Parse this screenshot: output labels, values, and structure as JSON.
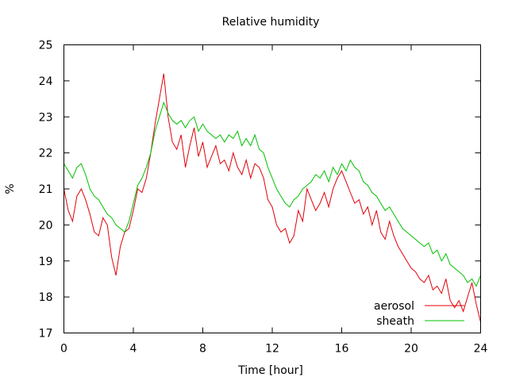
{
  "chart_data": {
    "type": "line",
    "title": "Relative humidity",
    "xlabel": "Time [hour]",
    "ylabel": "%",
    "xlim": [
      0,
      24
    ],
    "ylim": [
      17,
      25
    ],
    "xticks": [
      0,
      4,
      8,
      12,
      16,
      20,
      24
    ],
    "yticks": [
      17,
      18,
      19,
      20,
      21,
      22,
      23,
      24,
      25
    ],
    "grid": false,
    "legend_position": "bottom-right",
    "series": [
      {
        "name": "aerosol",
        "color": "#e0000a",
        "x": [
          0,
          0.25,
          0.5,
          0.75,
          1,
          1.25,
          1.5,
          1.75,
          2,
          2.25,
          2.5,
          2.75,
          3,
          3.25,
          3.5,
          3.75,
          4,
          4.25,
          4.5,
          4.75,
          5,
          5.25,
          5.5,
          5.75,
          6,
          6.25,
          6.5,
          6.75,
          7,
          7.25,
          7.5,
          7.75,
          8,
          8.25,
          8.5,
          8.75,
          9,
          9.25,
          9.5,
          9.75,
          10,
          10.25,
          10.5,
          10.75,
          11,
          11.25,
          11.5,
          11.75,
          12,
          12.25,
          12.5,
          12.75,
          13,
          13.25,
          13.5,
          13.75,
          14,
          14.25,
          14.5,
          14.75,
          15,
          15.25,
          15.5,
          15.75,
          16,
          16.25,
          16.5,
          16.75,
          17,
          17.25,
          17.5,
          17.75,
          18,
          18.25,
          18.5,
          18.75,
          19,
          19.25,
          19.5,
          19.75,
          20,
          20.25,
          20.5,
          20.75,
          21,
          21.25,
          21.5,
          21.75,
          22,
          22.25,
          22.5,
          22.75,
          23,
          23.25,
          23.5,
          23.75,
          24
        ],
        "values": [
          21.0,
          20.4,
          20.1,
          20.8,
          21.0,
          20.7,
          20.3,
          19.8,
          19.7,
          20.2,
          20.0,
          19.1,
          18.6,
          19.4,
          19.8,
          19.9,
          20.4,
          21.0,
          20.9,
          21.3,
          22.0,
          22.8,
          23.5,
          24.2,
          23.0,
          22.3,
          22.1,
          22.5,
          21.6,
          22.2,
          22.7,
          21.9,
          22.3,
          21.6,
          21.9,
          22.2,
          21.7,
          21.8,
          21.5,
          22.0,
          21.6,
          21.4,
          21.8,
          21.3,
          21.7,
          21.6,
          21.3,
          20.7,
          20.5,
          20.0,
          19.8,
          19.9,
          19.5,
          19.7,
          20.4,
          20.1,
          21.0,
          20.7,
          20.4,
          20.6,
          20.9,
          20.5,
          21.0,
          21.3,
          21.5,
          21.2,
          20.9,
          20.6,
          20.7,
          20.3,
          20.5,
          20.0,
          20.4,
          19.8,
          19.6,
          20.1,
          19.7,
          19.4,
          19.2,
          19.0,
          18.8,
          18.7,
          18.5,
          18.4,
          18.6,
          18.2,
          18.3,
          18.1,
          18.5,
          17.9,
          17.7,
          17.9,
          17.6,
          18.0,
          18.4,
          17.8,
          17.3
        ]
      },
      {
        "name": "sheath",
        "color": "#00c000",
        "x": [
          0,
          0.25,
          0.5,
          0.75,
          1,
          1.25,
          1.5,
          1.75,
          2,
          2.25,
          2.5,
          2.75,
          3,
          3.25,
          3.5,
          3.75,
          4,
          4.25,
          4.5,
          4.75,
          5,
          5.25,
          5.5,
          5.75,
          6,
          6.25,
          6.5,
          6.75,
          7,
          7.25,
          7.5,
          7.75,
          8,
          8.25,
          8.5,
          8.75,
          9,
          9.25,
          9.5,
          9.75,
          10,
          10.25,
          10.5,
          10.75,
          11,
          11.25,
          11.5,
          11.75,
          12,
          12.25,
          12.5,
          12.75,
          13,
          13.25,
          13.5,
          13.75,
          14,
          14.25,
          14.5,
          14.75,
          15,
          15.25,
          15.5,
          15.75,
          16,
          16.25,
          16.5,
          16.75,
          17,
          17.25,
          17.5,
          17.75,
          18,
          18.25,
          18.5,
          18.75,
          19,
          19.25,
          19.5,
          19.75,
          20,
          20.25,
          20.5,
          20.75,
          21,
          21.25,
          21.5,
          21.75,
          22,
          22.25,
          22.5,
          22.75,
          23,
          23.25,
          23.5,
          23.75,
          24
        ],
        "values": [
          21.7,
          21.5,
          21.3,
          21.6,
          21.7,
          21.4,
          21.0,
          20.8,
          20.7,
          20.5,
          20.3,
          20.2,
          20.0,
          19.9,
          19.8,
          20.1,
          20.6,
          21.1,
          21.3,
          21.6,
          22.0,
          22.6,
          23.0,
          23.4,
          23.1,
          22.9,
          22.8,
          22.9,
          22.7,
          22.9,
          23.0,
          22.6,
          22.8,
          22.6,
          22.5,
          22.4,
          22.5,
          22.3,
          22.5,
          22.4,
          22.6,
          22.2,
          22.4,
          22.2,
          22.5,
          22.1,
          22.0,
          21.6,
          21.3,
          21.0,
          20.8,
          20.6,
          20.5,
          20.7,
          20.8,
          21.0,
          21.1,
          21.2,
          21.4,
          21.3,
          21.5,
          21.2,
          21.6,
          21.4,
          21.7,
          21.5,
          21.8,
          21.6,
          21.5,
          21.2,
          21.1,
          20.9,
          20.8,
          20.6,
          20.4,
          20.5,
          20.3,
          20.1,
          19.9,
          19.8,
          19.7,
          19.6,
          19.5,
          19.4,
          19.5,
          19.2,
          19.3,
          19.0,
          19.2,
          18.9,
          18.8,
          18.7,
          18.6,
          18.4,
          18.5,
          18.3,
          18.6
        ]
      }
    ]
  }
}
